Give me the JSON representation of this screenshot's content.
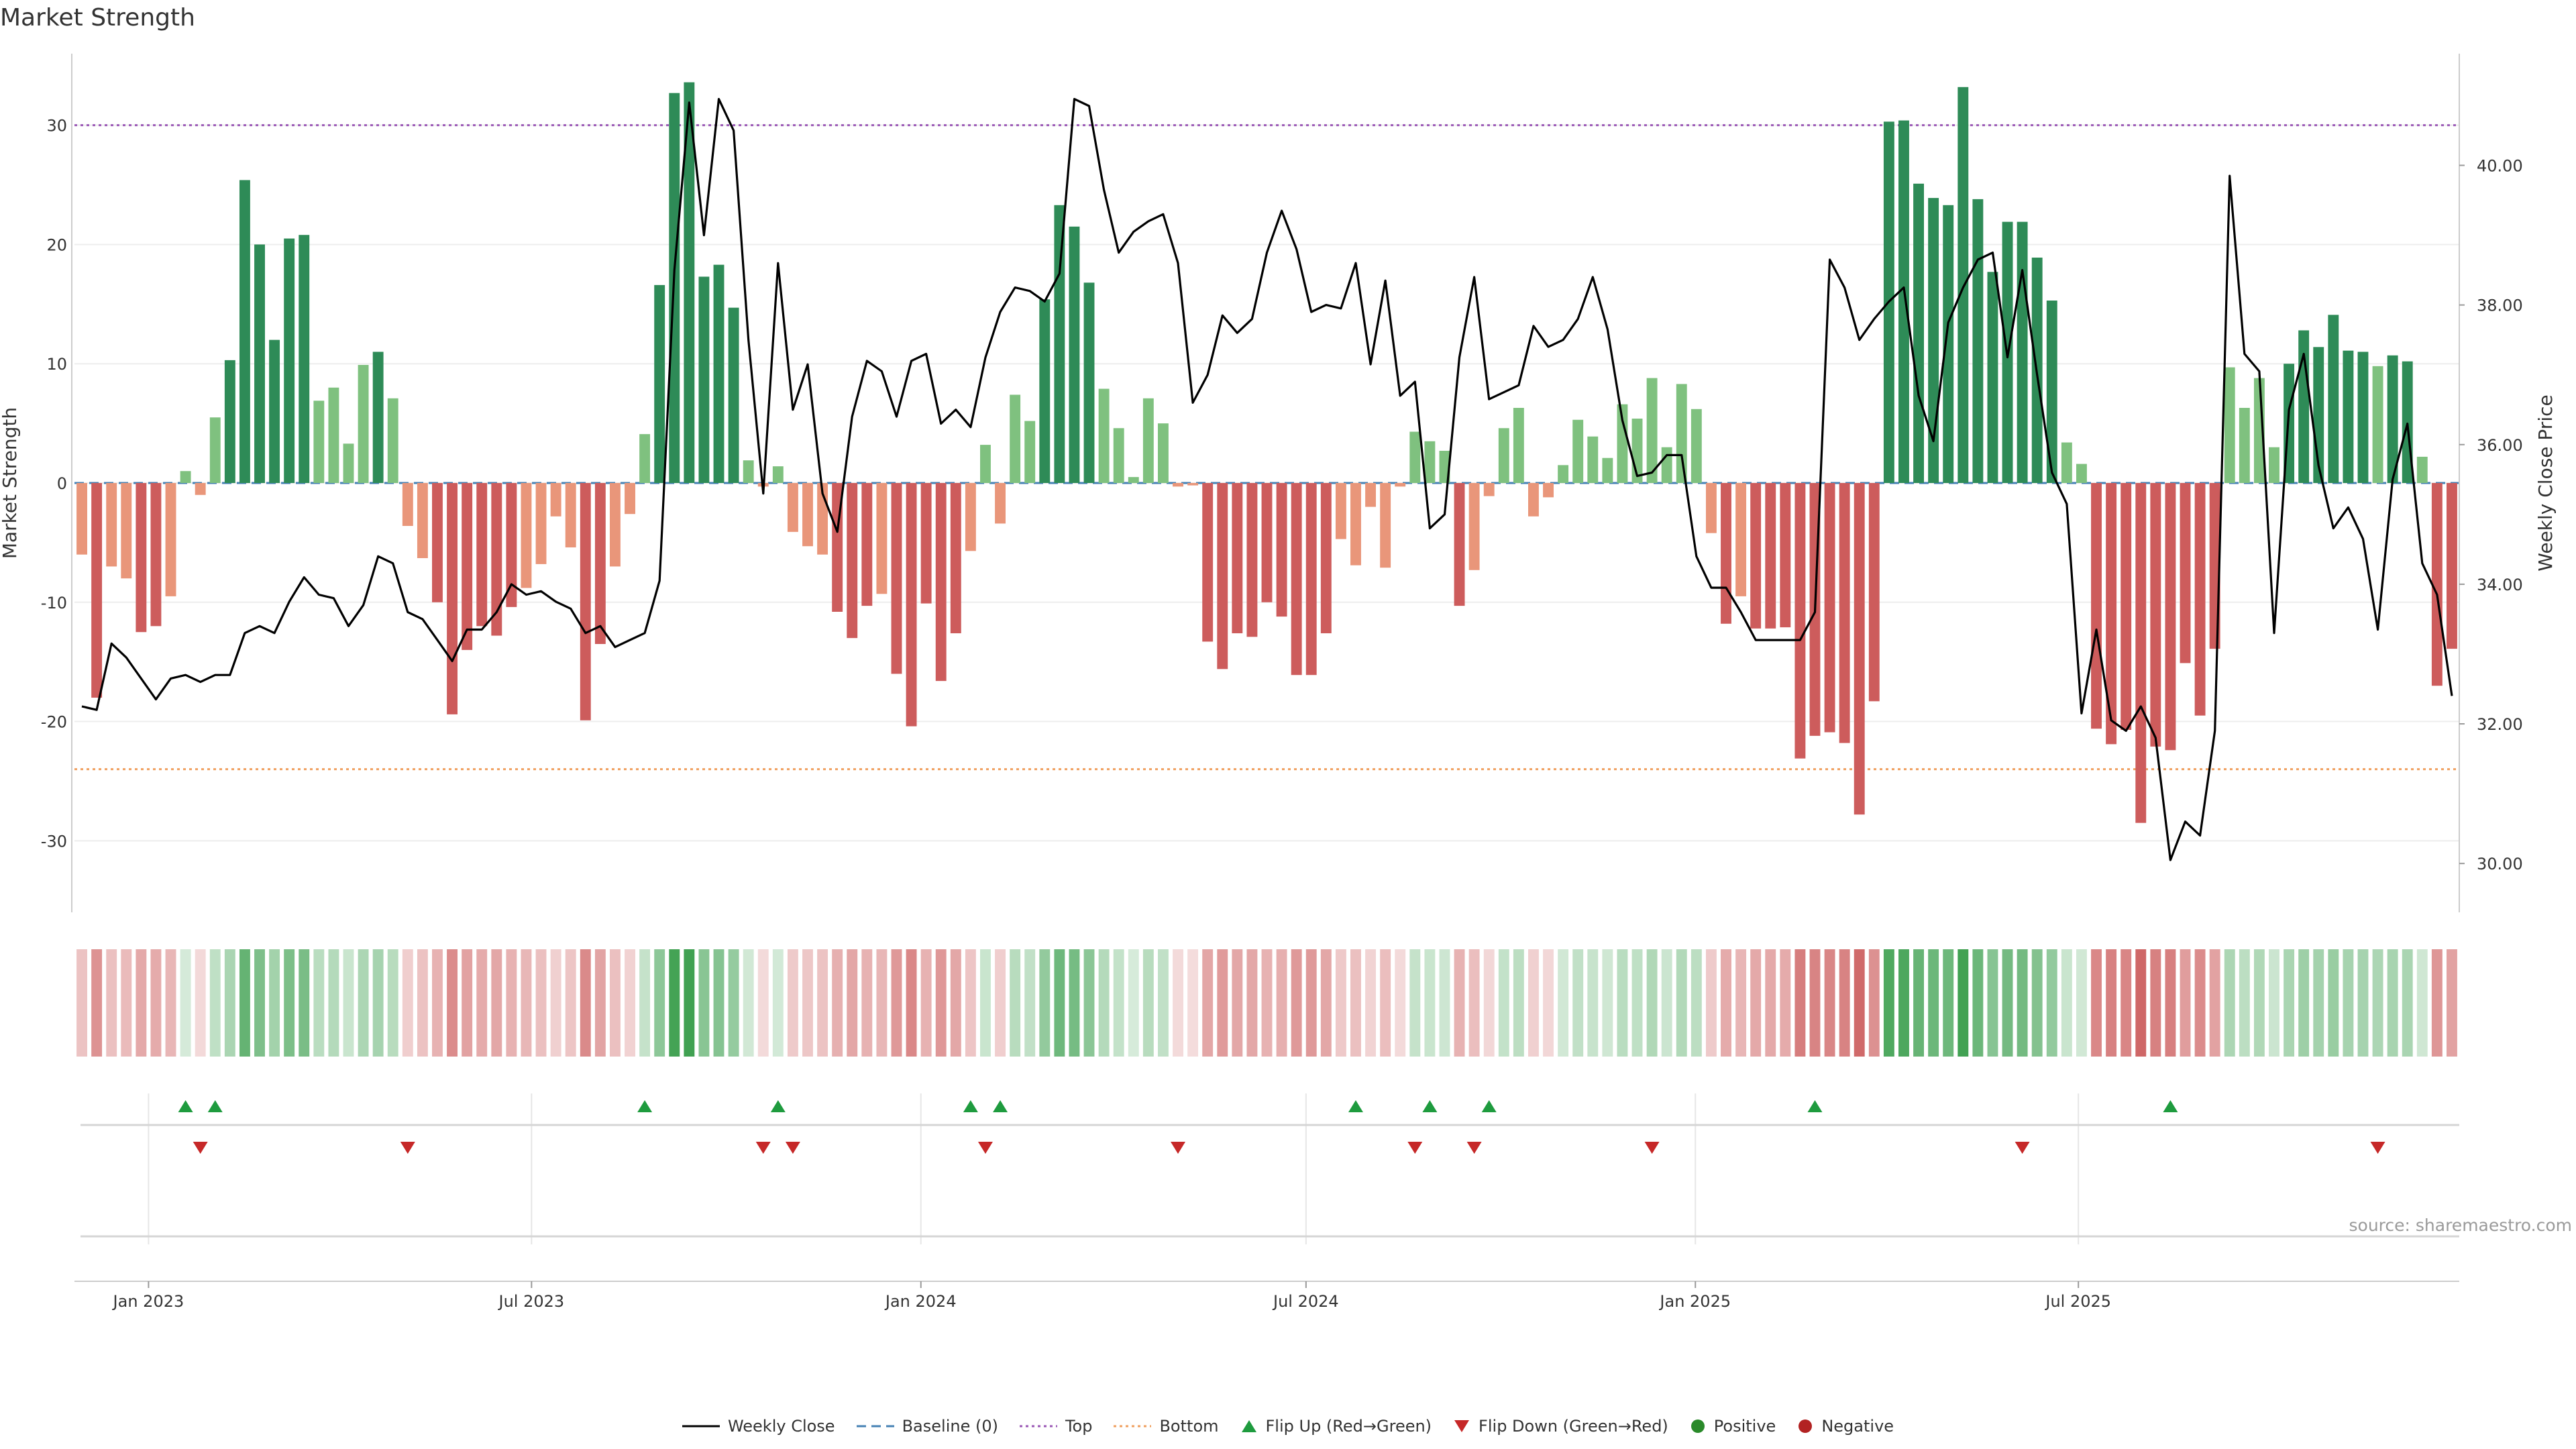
{
  "title": "Market Strength",
  "source": "source: sharemaestro.com",
  "chart_data": {
    "type": "bar+line",
    "title": "Market Strength",
    "ylabel_left": "Market Strength",
    "ylabel_right": "Weekly Close Price",
    "ylim_left": [
      -36,
      36
    ],
    "ylim_right": [
      29.3,
      41.6
    ],
    "yticks_left": [
      -30,
      -20,
      -10,
      0,
      10,
      20,
      30
    ],
    "yticks_right": [
      "30.00",
      "32.00",
      "34.00",
      "36.00",
      "38.00",
      "40.00"
    ],
    "top_line": 30,
    "bottom_line": -24,
    "x_start": "2022-11-27",
    "week_step": 1,
    "x_ticks": [
      {
        "label": "Jan 2023",
        "date": "2023-01-01"
      },
      {
        "label": "Jul 2023",
        "date": "2023-07-01"
      },
      {
        "label": "Jan 2024",
        "date": "2024-01-01"
      },
      {
        "label": "Jul 2024",
        "date": "2024-07-01"
      },
      {
        "label": "Jan 2025",
        "date": "2025-01-01"
      },
      {
        "label": "Jul 2025",
        "date": "2025-07-01"
      }
    ],
    "market_strength": [
      -6,
      -18,
      -7,
      -8,
      -12.5,
      -12,
      -9.5,
      1,
      -1,
      5.5,
      10.3,
      25.4,
      20,
      12,
      20.5,
      20.8,
      6.9,
      8,
      3.3,
      9.9,
      11,
      7.1,
      -3.6,
      -6.3,
      -10,
      -19.4,
      -14,
      -12,
      -12.8,
      -10.4,
      -8.8,
      -6.8,
      -2.8,
      -5.4,
      -19.9,
      -13.5,
      -7,
      -2.6,
      4.1,
      16.6,
      32.7,
      33.6,
      17.3,
      18.3,
      14.7,
      1.9,
      -0.3,
      1.4,
      -4.1,
      -5.3,
      -6,
      -10.8,
      -13,
      -10.3,
      -9.3,
      -16,
      -20.4,
      -10.1,
      -16.6,
      -12.6,
      -5.7,
      3.2,
      -3.4,
      7.4,
      5.2,
      15.4,
      23.3,
      21.5,
      16.8,
      7.9,
      4.6,
      0.5,
      7.1,
      5,
      -0.3,
      -0.2,
      -13.3,
      -15.6,
      -12.6,
      -12.9,
      -10,
      -11.2,
      -16.1,
      -16.1,
      -12.6,
      -4.7,
      -6.9,
      -2,
      -7.1,
      -0.3,
      4.3,
      3.5,
      2.7,
      -10.3,
      -7.3,
      -1.1,
      4.6,
      6.3,
      -2.8,
      -1.2,
      1.5,
      5.3,
      3.9,
      2.1,
      6.6,
      5.4,
      8.8,
      3,
      8.3,
      6.2,
      -4.2,
      -11.8,
      -9.5,
      -12.2,
      -12.2,
      -12.1,
      -23.1,
      -21.2,
      -20.9,
      -21.8,
      -27.8,
      -18.3,
      30.3,
      30.4,
      25.1,
      23.9,
      23.3,
      33.2,
      23.8,
      17.7,
      21.9,
      21.9,
      18.9,
      15.3,
      3.4,
      1.6,
      -20.6,
      -21.9,
      -20.7,
      -28.5,
      -22.1,
      -22.4,
      -15.1,
      -19.5,
      -13.9,
      9.7,
      6.3,
      8.8,
      3,
      10,
      12.8,
      11.4,
      14.1,
      11.1,
      11,
      9.8,
      10.7,
      10.2,
      2.2,
      -17,
      -13.9
    ],
    "weekly_close": [
      32.25,
      32.2,
      33.15,
      32.95,
      32.65,
      32.35,
      32.65,
      32.7,
      32.6,
      32.7,
      32.7,
      33.3,
      33.4,
      33.3,
      33.75,
      34.1,
      33.85,
      33.8,
      33.4,
      33.7,
      34.4,
      34.3,
      33.6,
      33.5,
      33.2,
      32.9,
      33.35,
      33.35,
      33.6,
      34,
      33.85,
      33.9,
      33.75,
      33.65,
      33.3,
      33.4,
      33.1,
      33.2,
      33.3,
      34.05,
      38.5,
      40.9,
      39,
      40.95,
      40.5,
      37.5,
      35.3,
      38.6,
      36.5,
      37.15,
      35.3,
      34.75,
      36.4,
      37.2,
      37.05,
      36.4,
      37.2,
      37.3,
      36.3,
      36.5,
      36.25,
      37.25,
      37.9,
      38.25,
      38.2,
      38.05,
      38.45,
      40.95,
      40.85,
      39.65,
      38.75,
      39.05,
      39.2,
      39.3,
      38.6,
      36.6,
      37,
      37.85,
      37.6,
      37.8,
      38.75,
      39.35,
      38.8,
      37.9,
      38,
      37.95,
      38.6,
      37.15,
      38.35,
      36.7,
      36.9,
      34.8,
      35,
      37.25,
      38.4,
      36.65,
      36.75,
      36.85,
      37.7,
      37.4,
      37.5,
      37.8,
      38.4,
      37.65,
      36.35,
      35.55,
      35.6,
      35.85,
      35.85,
      34.4,
      33.95,
      33.95,
      33.6,
      33.2,
      33.2,
      33.2,
      33.2,
      33.6,
      38.65,
      38.25,
      37.5,
      37.8,
      38.05,
      38.25,
      36.7,
      36.05,
      37.75,
      38.25,
      38.65,
      38.75,
      37.25,
      38.5,
      37,
      35.6,
      35.15,
      32.15,
      33.35,
      32.05,
      31.9,
      32.25,
      31.8,
      30.05,
      30.6,
      30.4,
      31.9,
      39.85,
      37.3,
      37.05,
      33.3,
      36.5,
      37.3,
      35.7,
      34.8,
      35.1,
      34.65,
      33.35,
      35.5,
      36.3,
      34.3,
      33.85,
      32.4
    ],
    "flip_up_weeks": [
      7,
      9,
      38,
      47,
      60,
      62,
      86,
      91,
      95,
      117,
      141
    ],
    "flip_down_weeks": [
      8,
      22,
      46,
      48,
      61,
      74,
      90,
      94,
      106,
      131,
      155
    ],
    "legend": [
      "Weekly Close",
      "Baseline (0)",
      "Top",
      "Bottom",
      "Flip Up (Red→Green)",
      "Flip Down (Green→Red)",
      "Positive",
      "Negative"
    ]
  },
  "colors": {
    "pos_strong": "#2e8b57",
    "pos_light": "#7fc17f",
    "neg_strong": "#cd5c5c",
    "neg_light": "#e9967a",
    "top_line": "#9b59b6",
    "bottom_line": "#f0a060",
    "baseline": "#4682b4",
    "flip_up": "#1e9b3e",
    "flip_down": "#c62828",
    "positive_dot": "#2a8a2a",
    "negative_dot": "#b22222"
  }
}
